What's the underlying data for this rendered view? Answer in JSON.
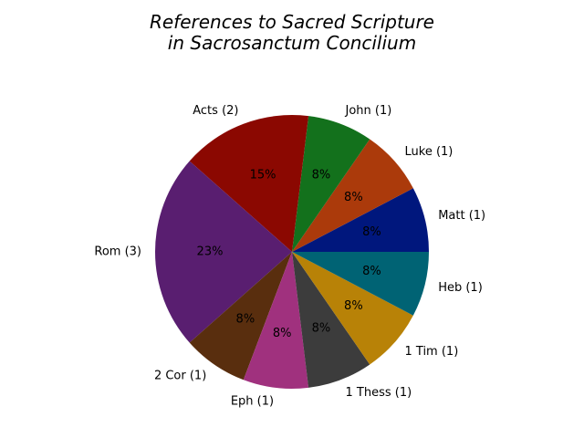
{
  "chart_data": {
    "type": "pie",
    "title_lines": [
      "References to Sacred Scripture",
      "in Sacrosanctum Concilium"
    ],
    "slices": [
      {
        "label": "Matt (1)",
        "value": 1,
        "pct": "8%",
        "color": "#00177d"
      },
      {
        "label": "Luke (1)",
        "value": 1,
        "pct": "8%",
        "color": "#ab3a0b"
      },
      {
        "label": "John (1)",
        "value": 1,
        "pct": "8%",
        "color": "#13711c"
      },
      {
        "label": "Acts (2)",
        "value": 2,
        "pct": "15%",
        "color": "#8b0801"
      },
      {
        "label": "Rom (3)",
        "value": 3,
        "pct": "23%",
        "color": "#591e70"
      },
      {
        "label": "2 Cor (1)",
        "value": 1,
        "pct": "8%",
        "color": "#592e0e"
      },
      {
        "label": "Eph (1)",
        "value": 1,
        "pct": "8%",
        "color": "#a0317e"
      },
      {
        "label": "1 Thess (1)",
        "value": 1,
        "pct": "8%",
        "color": "#3c3c3c"
      },
      {
        "label": "1 Tim (1)",
        "value": 1,
        "pct": "8%",
        "color": "#b88207"
      },
      {
        "label": "Heb (1)",
        "value": 1,
        "pct": "8%",
        "color": "#006374"
      }
    ],
    "start_angle_deg": 0,
    "direction": "counterclockwise"
  }
}
